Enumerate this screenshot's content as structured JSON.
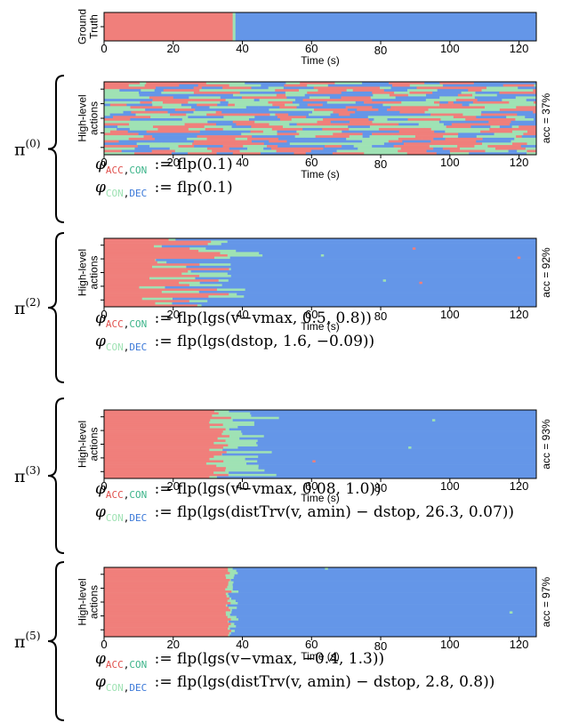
{
  "colors": {
    "ACC": "#f07f7b",
    "CON": "#9fe2b4",
    "DEC": "#6496e8"
  },
  "chart_data": [
    {
      "type": "heatmap",
      "id": "ground-truth",
      "ylabel": [
        "Ground",
        "Truth"
      ],
      "xlabel": "Time (s)",
      "xlim": [
        0,
        125
      ],
      "xticks": [
        "0",
        "20",
        "40",
        "60",
        "80",
        "100",
        "120"
      ],
      "rows": 1,
      "segments": [
        {
          "action": "ACC",
          "start": 0,
          "end": 37.2
        },
        {
          "action": "CON",
          "start": 37.2,
          "end": 38
        },
        {
          "action": "DEC",
          "start": 38,
          "end": 125
        }
      ]
    },
    {
      "type": "heatmap",
      "id": "pi0",
      "policy": {
        "base": "π",
        "sup": "(0)"
      },
      "ylabel": [
        "High-level",
        "actions"
      ],
      "xlabel": "Time (s)",
      "xlim": [
        0,
        125
      ],
      "xticks": [
        "0",
        "20",
        "40",
        "60",
        "80",
        "100",
        "120"
      ],
      "accuracy": "acc = 37%",
      "rows": 30,
      "mode": "random",
      "flip_prob": 0.1,
      "formulas": [
        {
          "pre": "φ",
          "a": "ACC",
          "b": "CON",
          "rhs": ":= flp(0.1)"
        },
        {
          "pre": "φ",
          "a": "CON",
          "b": "DEC",
          "rhs": ":= flp(0.1)"
        }
      ]
    },
    {
      "type": "heatmap",
      "id": "pi2",
      "policy": {
        "base": "π",
        "sup": "(2)"
      },
      "ylabel": [
        "High-level",
        "actions"
      ],
      "xlabel": "Time (s)",
      "xlim": [
        0,
        125
      ],
      "xticks": [
        "0",
        "20",
        "40",
        "60",
        "80",
        "100",
        "120"
      ],
      "accuracy": "acc = 92%",
      "rows": 30,
      "mode": "transition",
      "acc_end_range": [
        10,
        37
      ],
      "con_len_range": [
        0,
        14
      ],
      "formulas": [
        {
          "pre": "φ",
          "a": "ACC",
          "b": "CON",
          "rhs": ":= flp(lgs(v−vmax, 0.5, 0.8))"
        },
        {
          "pre": "φ",
          "a": "CON",
          "b": "DEC",
          "rhs": ":= flp(lgs(dstop, 1.6, −0.09))"
        }
      ]
    },
    {
      "type": "heatmap",
      "id": "pi3",
      "policy": {
        "base": "π",
        "sup": "(3)"
      },
      "ylabel": [
        "High-level",
        "actions"
      ],
      "xlabel": "Time (s)",
      "xlim": [
        0,
        125
      ],
      "xticks": [
        "0",
        "20",
        "40",
        "60",
        "80",
        "100",
        "120"
      ],
      "accuracy": "acc = 93%",
      "rows": 30,
      "mode": "transition",
      "acc_end_range": [
        29,
        37
      ],
      "con_len_range": [
        0,
        14
      ],
      "formulas": [
        {
          "pre": "φ",
          "a": "ACC",
          "b": "CON",
          "rhs": ":= flp(lgs(v−vmax, 0.08, 1.0))"
        },
        {
          "pre": "φ",
          "a": "CON",
          "b": "DEC",
          "rhs": ":= flp(lgs(distTrv(v, amin) − dstop, 26.3, 0.07))"
        }
      ]
    },
    {
      "type": "heatmap",
      "id": "pi5",
      "policy": {
        "base": "π",
        "sup": "(5)"
      },
      "ylabel": [
        "High-level",
        "actions"
      ],
      "xlabel": "Time (s)",
      "xlim": [
        0,
        125
      ],
      "xticks": [
        "0",
        "20",
        "40",
        "60",
        "80",
        "100",
        "120"
      ],
      "accuracy": "acc = 97%",
      "rows": 30,
      "mode": "transition",
      "acc_end_range": [
        35,
        37
      ],
      "con_len_range": [
        0,
        3
      ],
      "formulas": [
        {
          "pre": "φ",
          "a": "ACC",
          "b": "CON",
          "rhs": ":= flp(lgs(v−vmax, −0.4, 1.3))"
        },
        {
          "pre": "φ",
          "a": "CON",
          "b": "DEC",
          "rhs": ":= flp(lgs(distTrv(v, amin) − dstop, 2.8, 0.8))"
        }
      ]
    }
  ]
}
